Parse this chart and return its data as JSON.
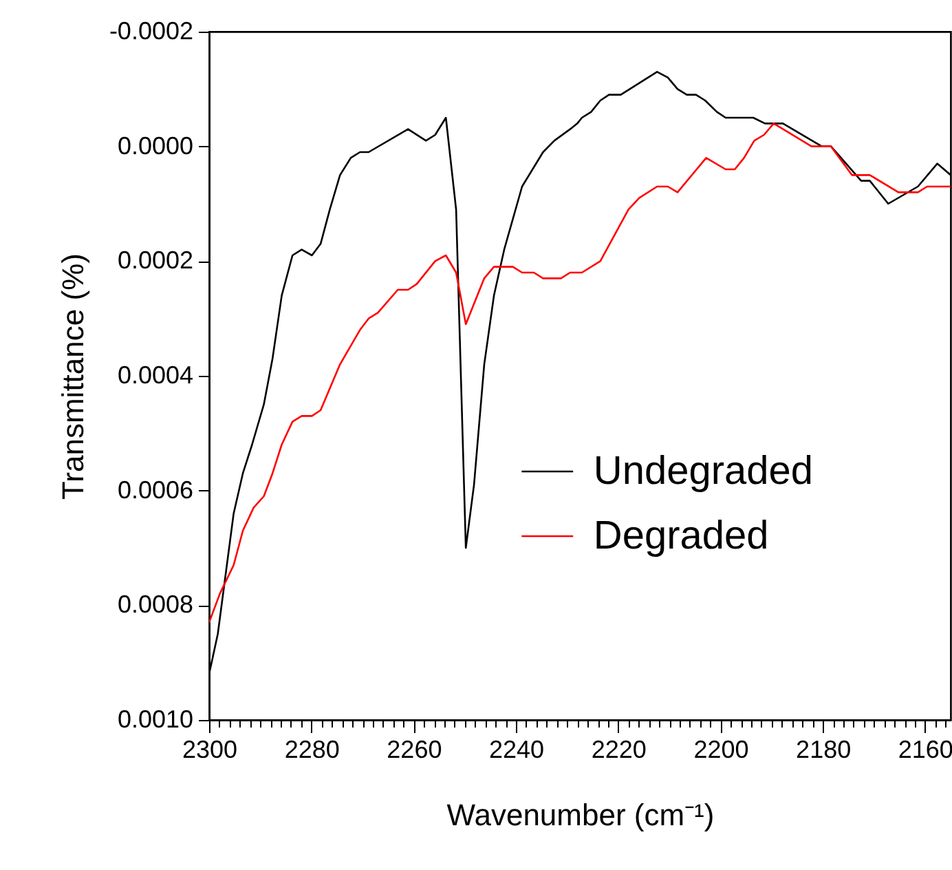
{
  "chart_data": {
    "type": "line",
    "xlabel": "Wavenumber (cm⁻¹)",
    "ylabel": "Transmittance (%)",
    "xlim": [
      2300,
      2155
    ],
    "ylim": [
      0.001,
      -0.0002
    ],
    "xticks": [
      2300,
      2280,
      2260,
      2240,
      2220,
      2200,
      2180,
      2160,
      {
        "value": 2298,
        "label": null
      },
      {
        "value": 2296,
        "label": null
      },
      {
        "value": 2294,
        "label": null
      },
      {
        "value": 2292,
        "label": null
      },
      {
        "value": 2290,
        "label": null
      },
      {
        "value": 2288,
        "label": null
      },
      {
        "value": 2286,
        "label": null
      },
      {
        "value": 2284,
        "label": null
      },
      {
        "value": 2282,
        "label": null
      },
      {
        "value": 2278,
        "label": null
      },
      {
        "value": 2276,
        "label": null
      },
      {
        "value": 2274,
        "label": null
      },
      {
        "value": 2272,
        "label": null
      },
      {
        "value": 2270,
        "label": null
      },
      {
        "value": 2268,
        "label": null
      },
      {
        "value": 2266,
        "label": null
      },
      {
        "value": 2264,
        "label": null
      },
      {
        "value": 2262,
        "label": null
      },
      {
        "value": 2258,
        "label": null
      },
      {
        "value": 2256,
        "label": null
      },
      {
        "value": 2254,
        "label": null
      },
      {
        "value": 2252,
        "label": null
      },
      {
        "value": 2250,
        "label": null
      },
      {
        "value": 2248,
        "label": null
      },
      {
        "value": 2246,
        "label": null
      },
      {
        "value": 2244,
        "label": null
      },
      {
        "value": 2242,
        "label": null
      },
      {
        "value": 2238,
        "label": null
      },
      {
        "value": 2236,
        "label": null
      },
      {
        "value": 2234,
        "label": null
      },
      {
        "value": 2232,
        "label": null
      },
      {
        "value": 2230,
        "label": null
      },
      {
        "value": 2228,
        "label": null
      },
      {
        "value": 2226,
        "label": null
      },
      {
        "value": 2224,
        "label": null
      },
      {
        "value": 2222,
        "label": null
      },
      {
        "value": 2218,
        "label": null
      },
      {
        "value": 2216,
        "label": null
      },
      {
        "value": 2214,
        "label": null
      },
      {
        "value": 2212,
        "label": null
      },
      {
        "value": 2210,
        "label": null
      },
      {
        "value": 2208,
        "label": null
      },
      {
        "value": 2206,
        "label": null
      },
      {
        "value": 2204,
        "label": null
      },
      {
        "value": 2202,
        "label": null
      },
      {
        "value": 2198,
        "label": null
      },
      {
        "value": 2196,
        "label": null
      },
      {
        "value": 2194,
        "label": null
      },
      {
        "value": 2192,
        "label": null
      },
      {
        "value": 2190,
        "label": null
      },
      {
        "value": 2188,
        "label": null
      },
      {
        "value": 2186,
        "label": null
      },
      {
        "value": 2184,
        "label": null
      },
      {
        "value": 2182,
        "label": null
      },
      {
        "value": 2178,
        "label": null
      },
      {
        "value": 2176,
        "label": null
      },
      {
        "value": 2174,
        "label": null
      },
      {
        "value": 2172,
        "label": null
      },
      {
        "value": 2170,
        "label": null
      },
      {
        "value": 2168,
        "label": null
      },
      {
        "value": 2166,
        "label": null
      },
      {
        "value": 2164,
        "label": null
      },
      {
        "value": 2162,
        "label": null
      },
      {
        "value": 2158,
        "label": null
      },
      {
        "value": 2156,
        "label": null
      }
    ],
    "yticks": [
      {
        "value": -0.0002,
        "label": "-0.0002"
      },
      {
        "value": 0,
        "label": "0.0000"
      },
      {
        "value": 0.0002,
        "label": "0.0002"
      },
      {
        "value": 0.0004,
        "label": "0.0004"
      },
      {
        "value": 0.0006,
        "label": "0.0006"
      },
      {
        "value": 0.0008,
        "label": "0.0008"
      },
      {
        "value": 0.001,
        "label": "0.0010"
      }
    ],
    "grid": false,
    "legend": "right",
    "line_style": "solid",
    "marker": "none",
    "series": [
      {
        "name": "Undegraded",
        "color": "#000000",
        "x": [
          2300,
          2298.3,
          2295.2,
          2293.4,
          2291.6,
          2289.3,
          2287.6,
          2285.8,
          2283.7,
          2281.9,
          2279.9,
          2278.2,
          2276.4,
          2274.4,
          2272.3,
          2270.5,
          2268.8,
          2261.1,
          2257.6,
          2255.8,
          2253.7,
          2251.7,
          2249.8,
          2248.2,
          2246.2,
          2244.3,
          2242.3,
          2238.8,
          2234.7,
          2232.5,
          2229.4,
          2228,
          2227.1,
          2225.3,
          2223.5,
          2221.8,
          2219.5,
          2212.4,
          2210.3,
          2208.4,
          2206.6,
          2204.8,
          2203,
          2200.7,
          2199,
          2193.6,
          2191.3,
          2187.8,
          2180.2,
          2178.4,
          2172.5,
          2170.8,
          2167.2,
          2161.4,
          2157.6,
          2155
        ],
        "values": [
          0.00092,
          0.00085,
          0.00064,
          0.00057,
          0.00052,
          0.00045,
          0.00037,
          0.00026,
          0.00019,
          0.00018,
          0.00019,
          0.00017,
          0.00011,
          5e-05,
          2e-05,
          1e-05,
          1e-05,
          -3e-05,
          -1e-05,
          -2e-05,
          -5e-05,
          0.00011,
          0.0007,
          0.00059,
          0.00038,
          0.00026,
          0.00018,
          7e-05,
          1e-05,
          -1e-05,
          -3e-05,
          -4e-05,
          -5e-05,
          -6e-05,
          -8e-05,
          -9e-05,
          -9e-05,
          -0.00013,
          -0.00012,
          -0.0001,
          -9e-05,
          -9e-05,
          -8e-05,
          -6e-05,
          -5e-05,
          -5e-05,
          -4e-05,
          -4e-05,
          0.0,
          0.0,
          6e-05,
          6e-05,
          0.0001,
          7e-05,
          3e-05,
          5e-05
        ]
      },
      {
        "name": "Degraded",
        "color": "#ff0000",
        "x": [
          2300,
          2297.9,
          2295.2,
          2293.4,
          2291.3,
          2289.3,
          2287.6,
          2285.8,
          2283.7,
          2281.9,
          2279.9,
          2278.2,
          2274.4,
          2270.5,
          2268.8,
          2267,
          2263.1,
          2261.1,
          2259.4,
          2255.8,
          2253.7,
          2251.7,
          2249.8,
          2246.2,
          2244.3,
          2240.6,
          2238.8,
          2236.5,
          2234.7,
          2231.2,
          2229.4,
          2227.1,
          2223.5,
          2218,
          2215.9,
          2212.4,
          2210.3,
          2208.4,
          2202.8,
          2199,
          2197.2,
          2195.4,
          2193.4,
          2191.5,
          2189.6,
          2182.2,
          2178.4,
          2174.3,
          2170.8,
          2165.2,
          2161.4,
          2159.6,
          2155
        ],
        "values": [
          0.00083,
          0.00078,
          0.00073,
          0.00067,
          0.00063,
          0.00061,
          0.00057,
          0.00052,
          0.00048,
          0.00047,
          0.00047,
          0.00046,
          0.00038,
          0.00032,
          0.0003,
          0.00029,
          0.00025,
          0.00025,
          0.00024,
          0.0002,
          0.00019,
          0.00022,
          0.00031,
          0.00023,
          0.00021,
          0.00021,
          0.00022,
          0.00022,
          0.00023,
          0.00023,
          0.00022,
          0.00022,
          0.0002,
          0.00011,
          9e-05,
          7e-05,
          7e-05,
          8e-05,
          2e-05,
          4e-05,
          4e-05,
          2e-05,
          -1e-05,
          -2e-05,
          -4e-05,
          0.0,
          0.0,
          5e-05,
          5e-05,
          8e-05,
          8e-05,
          7e-05,
          7e-05
        ]
      }
    ]
  }
}
